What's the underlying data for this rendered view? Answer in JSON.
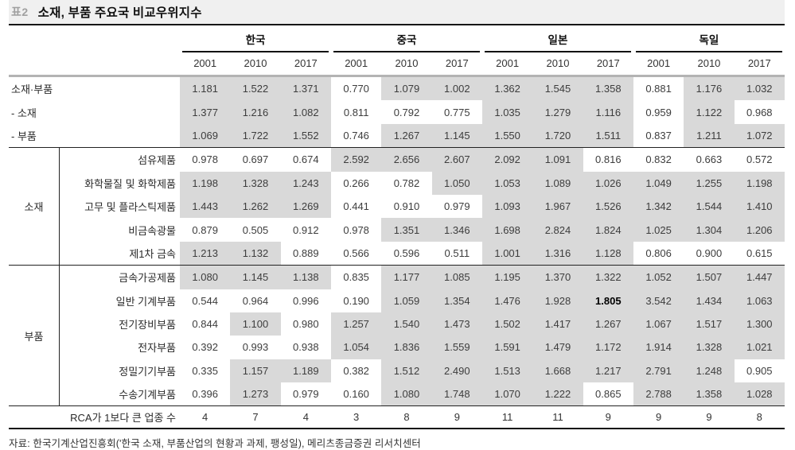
{
  "title": {
    "tag": "표2",
    "text": "소재, 부품 주요국 비교우위지수"
  },
  "header": {
    "countries": [
      "한국",
      "중국",
      "일본",
      "독일"
    ],
    "years": [
      "2001",
      "2010",
      "2017"
    ]
  },
  "summary_rows": [
    {
      "label": "소재·부품",
      "values": [
        "1.181",
        "1.522",
        "1.371",
        "0.770",
        "1.079",
        "1.002",
        "1.362",
        "1.545",
        "1.358",
        "0.881",
        "1.176",
        "1.032"
      ]
    },
    {
      "label": "- 소재",
      "values": [
        "1.377",
        "1.216",
        "1.082",
        "0.811",
        "0.792",
        "0.775",
        "1.035",
        "1.279",
        "1.116",
        "0.959",
        "1.122",
        "0.968"
      ]
    },
    {
      "label": "- 부품",
      "values": [
        "1.069",
        "1.722",
        "1.552",
        "0.746",
        "1.267",
        "1.145",
        "1.550",
        "1.720",
        "1.511",
        "0.837",
        "1.211",
        "1.072"
      ]
    }
  ],
  "groups": [
    {
      "name": "소재",
      "rows": [
        {
          "label": "섬유제품",
          "values": [
            "0.978",
            "0.697",
            "0.674",
            "2.592",
            "2.656",
            "2.607",
            "2.092",
            "1.091",
            "0.816",
            "0.832",
            "0.663",
            "0.572"
          ]
        },
        {
          "label": "화학물질 및 화학제품",
          "values": [
            "1.198",
            "1.328",
            "1.243",
            "0.266",
            "0.782",
            "1.050",
            "1.053",
            "1.089",
            "1.026",
            "1.049",
            "1.255",
            "1.198"
          ]
        },
        {
          "label": "고무 및 플라스틱제품",
          "values": [
            "1.443",
            "1.262",
            "1.269",
            "0.441",
            "0.910",
            "0.979",
            "1.093",
            "1.967",
            "1.526",
            "1.342",
            "1.544",
            "1.410"
          ]
        },
        {
          "label": "비금속광물",
          "values": [
            "0.879",
            "0.505",
            "0.912",
            "0.978",
            "1.351",
            "1.346",
            "1.698",
            "2.824",
            "1.824",
            "1.025",
            "1.304",
            "1.206"
          ]
        },
        {
          "label": "제1차 금속",
          "values": [
            "1.213",
            "1.132",
            "0.889",
            "0.566",
            "0.596",
            "0.511",
            "1.001",
            "1.316",
            "1.128",
            "0.806",
            "0.900",
            "0.615"
          ]
        }
      ]
    },
    {
      "name": "부품",
      "rows": [
        {
          "label": "금속가공제품",
          "values": [
            "1.080",
            "1.145",
            "1.138",
            "0.835",
            "1.177",
            "1.085",
            "1.195",
            "1.370",
            "1.322",
            "1.052",
            "1.507",
            "1.447"
          ]
        },
        {
          "label": "일반 기계부품",
          "values": [
            "0.544",
            "0.964",
            "0.996",
            "0.190",
            "1.059",
            "1.354",
            "1.476",
            "1.928",
            "1.805",
            "3.542",
            "1.434",
            "1.063"
          ],
          "bold_col": 8
        },
        {
          "label": "전기장비부품",
          "values": [
            "0.844",
            "1.100",
            "0.980",
            "1.257",
            "1.540",
            "1.473",
            "1.502",
            "1.417",
            "1.267",
            "1.067",
            "1.517",
            "1.300"
          ]
        },
        {
          "label": "전자부품",
          "values": [
            "0.392",
            "0.993",
            "0.938",
            "1.054",
            "1.836",
            "1.559",
            "1.591",
            "1.479",
            "1.172",
            "1.914",
            "1.328",
            "1.021"
          ]
        },
        {
          "label": "정밀기기부품",
          "values": [
            "0.335",
            "1.157",
            "1.189",
            "0.382",
            "1.512",
            "2.490",
            "1.513",
            "1.668",
            "1.217",
            "2.791",
            "1.248",
            "0.905"
          ]
        },
        {
          "label": "수송기계부품",
          "values": [
            "0.396",
            "1.273",
            "0.979",
            "0.160",
            "1.080",
            "1.748",
            "1.070",
            "1.222",
            "0.865",
            "2.788",
            "1.358",
            "1.028"
          ]
        }
      ]
    }
  ],
  "footer_row": {
    "label": "RCA가 1보다 큰 업종 수",
    "values": [
      "4",
      "7",
      "4",
      "3",
      "8",
      "9",
      "11",
      "11",
      "9",
      "9",
      "9",
      "8"
    ]
  },
  "source": "자료: 한국기계산업진흥회('한국 소재, 부품산업의 현황과 과제, 팽성일), 메리츠종금증권 리서치센터",
  "colors": {
    "highlight": "#d9d9d9",
    "header_rule": "#b3b3b3",
    "title_bg": "#f0f0f0",
    "tag_color": "#a0a0a0"
  },
  "highlight_rule": "cell shaded when value >= 1"
}
